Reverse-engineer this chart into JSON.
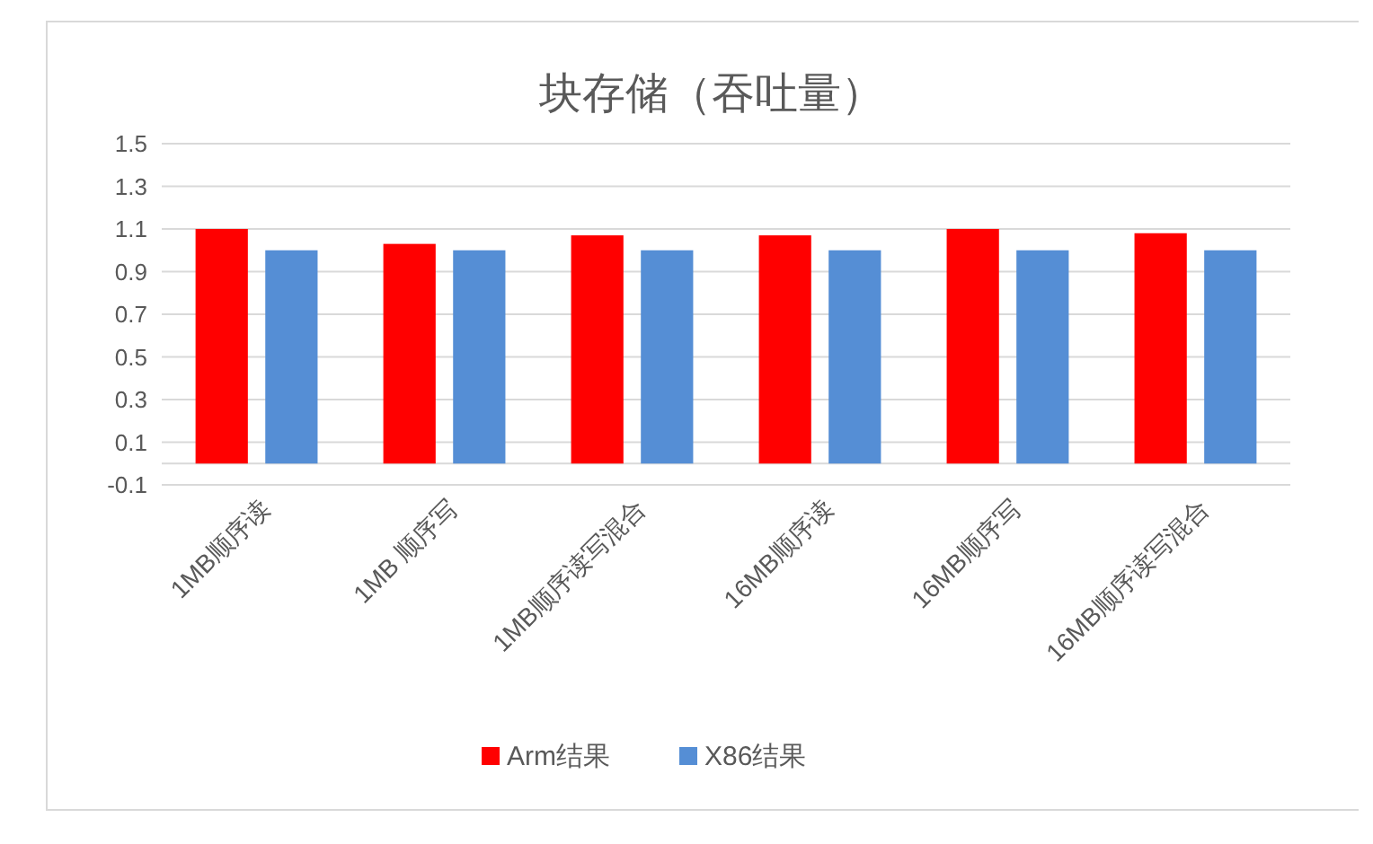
{
  "chart_data": {
    "type": "bar",
    "title": "块存储（吞吐量）",
    "categories": [
      "1MB顺序读",
      "1MB 顺序写",
      "1MB顺序读写混合",
      "16MB顺序读",
      "16MB顺序写",
      "16MB顺序读写混合"
    ],
    "series": [
      {
        "name": "Arm结果",
        "color": "#ff0000",
        "values": [
          1.1,
          1.03,
          1.07,
          1.07,
          1.1,
          1.08
        ]
      },
      {
        "name": "X86结果",
        "color": "#558ed5",
        "values": [
          1.0,
          1.0,
          1.0,
          1.0,
          1.0,
          1.0
        ]
      }
    ],
    "ylim": [
      -0.1,
      1.5
    ],
    "yticks": [
      -0.1,
      0.1,
      0.3,
      0.5,
      0.7,
      0.9,
      1.1,
      1.3,
      1.5
    ],
    "grid": "y",
    "legend": "bottom"
  }
}
